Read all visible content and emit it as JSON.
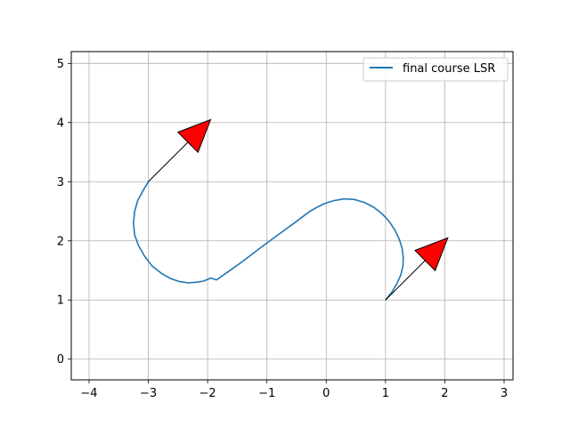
{
  "chart_data": {
    "type": "line",
    "title": "",
    "xlabel": "",
    "ylabel": "",
    "xlim": [
      -4.3,
      3.15
    ],
    "ylim": [
      -0.35,
      5.2
    ],
    "x_ticks": [
      -4,
      -3,
      -2,
      -1,
      0,
      1,
      2,
      3
    ],
    "y_ticks": [
      0,
      1,
      2,
      3,
      4,
      5
    ],
    "x_tick_labels": [
      "−4",
      "−3",
      "−2",
      "−1",
      "0",
      "1",
      "2",
      "3"
    ],
    "y_tick_labels": [
      "0",
      "1",
      "2",
      "3",
      "4",
      "5"
    ],
    "grid": true,
    "legend_position": "top-right",
    "series": [
      {
        "name": "final course LSR",
        "color": "#1f77b4",
        "x": [
          1.0,
          1.105,
          1.195,
          1.26,
          1.295,
          1.3,
          1.28,
          1.235,
          1.16,
          1.06,
          0.94,
          0.8,
          0.64,
          0.47,
          0.3,
          0.13,
          -0.03,
          -0.17,
          -0.29,
          -0.5,
          -0.8,
          -1.1,
          -1.4,
          -1.65,
          -1.85,
          -1.95,
          -2.07,
          -2.2,
          -2.33,
          -2.47,
          -2.62,
          -2.78,
          -2.94,
          -3.07,
          -3.17,
          -3.23,
          -3.25,
          -3.23,
          -3.18,
          -3.09,
          -3.0
        ],
        "y": [
          1.0,
          1.13,
          1.28,
          1.43,
          1.58,
          1.72,
          1.87,
          2.02,
          2.18,
          2.33,
          2.46,
          2.57,
          2.65,
          2.7,
          2.71,
          2.68,
          2.63,
          2.56,
          2.49,
          2.33,
          2.11,
          1.89,
          1.66,
          1.48,
          1.34,
          1.37,
          1.32,
          1.3,
          1.29,
          1.31,
          1.36,
          1.45,
          1.58,
          1.75,
          1.93,
          2.1,
          2.3,
          2.5,
          2.68,
          2.85,
          3.0
        ]
      }
    ],
    "arrows": [
      {
        "x": -3.0,
        "y": 3.0,
        "dx": 1.05,
        "dy": 1.05,
        "color": "#ff0000"
      },
      {
        "x": 1.0,
        "y": 1.0,
        "dx": 1.05,
        "dy": 1.05,
        "color": "#ff0000"
      }
    ]
  }
}
